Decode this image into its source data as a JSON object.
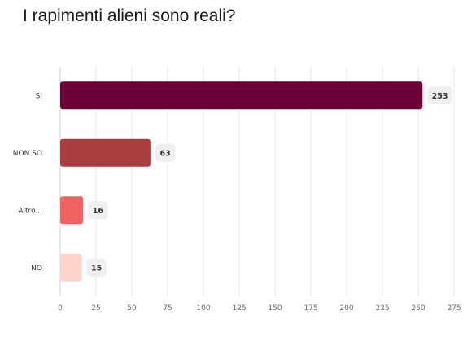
{
  "chart_data": {
    "type": "bar",
    "orientation": "horizontal",
    "title": "I rapimenti alieni sono reali?",
    "categories": [
      "SI",
      "NON SO",
      "Altro...",
      "NO"
    ],
    "values": [
      253,
      63,
      16,
      15
    ],
    "colors": [
      "#6b0036",
      "#aa3d3d",
      "#f26262",
      "#ffd4cc"
    ],
    "xlim": [
      0,
      275
    ],
    "xticks": [
      0,
      25,
      50,
      75,
      100,
      125,
      150,
      175,
      200,
      225,
      250,
      275
    ],
    "grid": true,
    "data_labels": true
  }
}
